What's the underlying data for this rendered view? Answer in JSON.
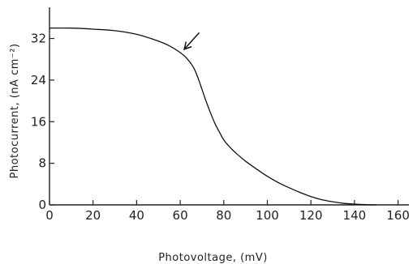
{
  "chart_data": {
    "type": "line",
    "title": "",
    "xlabel": "Photovoltage, (mV)",
    "ylabel": "Photocurrent, (nA cm⁻²)",
    "xlim": [
      0,
      165
    ],
    "ylim": [
      0,
      38
    ],
    "x_ticks": [
      0,
      20,
      40,
      60,
      80,
      100,
      120,
      140,
      160
    ],
    "x_tick_labels": [
      "0",
      "20",
      "40",
      "60",
      "80",
      "100",
      "120",
      "140",
      "160"
    ],
    "y_ticks": [
      0,
      8,
      16,
      24,
      32
    ],
    "y_tick_labels": [
      "0",
      "8",
      "16",
      "24",
      "32"
    ],
    "grid": false,
    "series": [
      {
        "x": [
          0,
          10,
          20,
          30,
          40,
          50,
          55,
          60,
          63,
          66,
          68,
          70,
          72,
          74,
          76,
          78,
          80,
          83,
          86,
          90,
          95,
          100,
          105,
          110,
          115,
          120,
          125,
          130,
          135,
          140,
          145,
          150
        ],
        "y": [
          34,
          34,
          33.8,
          33.5,
          32.8,
          31.5,
          30.6,
          29.3,
          28.2,
          26.5,
          24.6,
          22.2,
          19.8,
          17.6,
          15.6,
          14.0,
          12.5,
          11.0,
          9.8,
          8.4,
          6.9,
          5.5,
          4.3,
          3.3,
          2.4,
          1.6,
          1.0,
          0.6,
          0.3,
          0.15,
          0.05,
          0.0
        ]
      }
    ],
    "annotations": [
      {
        "type": "arrow",
        "points_to": {
          "x": 60,
          "y": 29.3
        }
      }
    ]
  }
}
